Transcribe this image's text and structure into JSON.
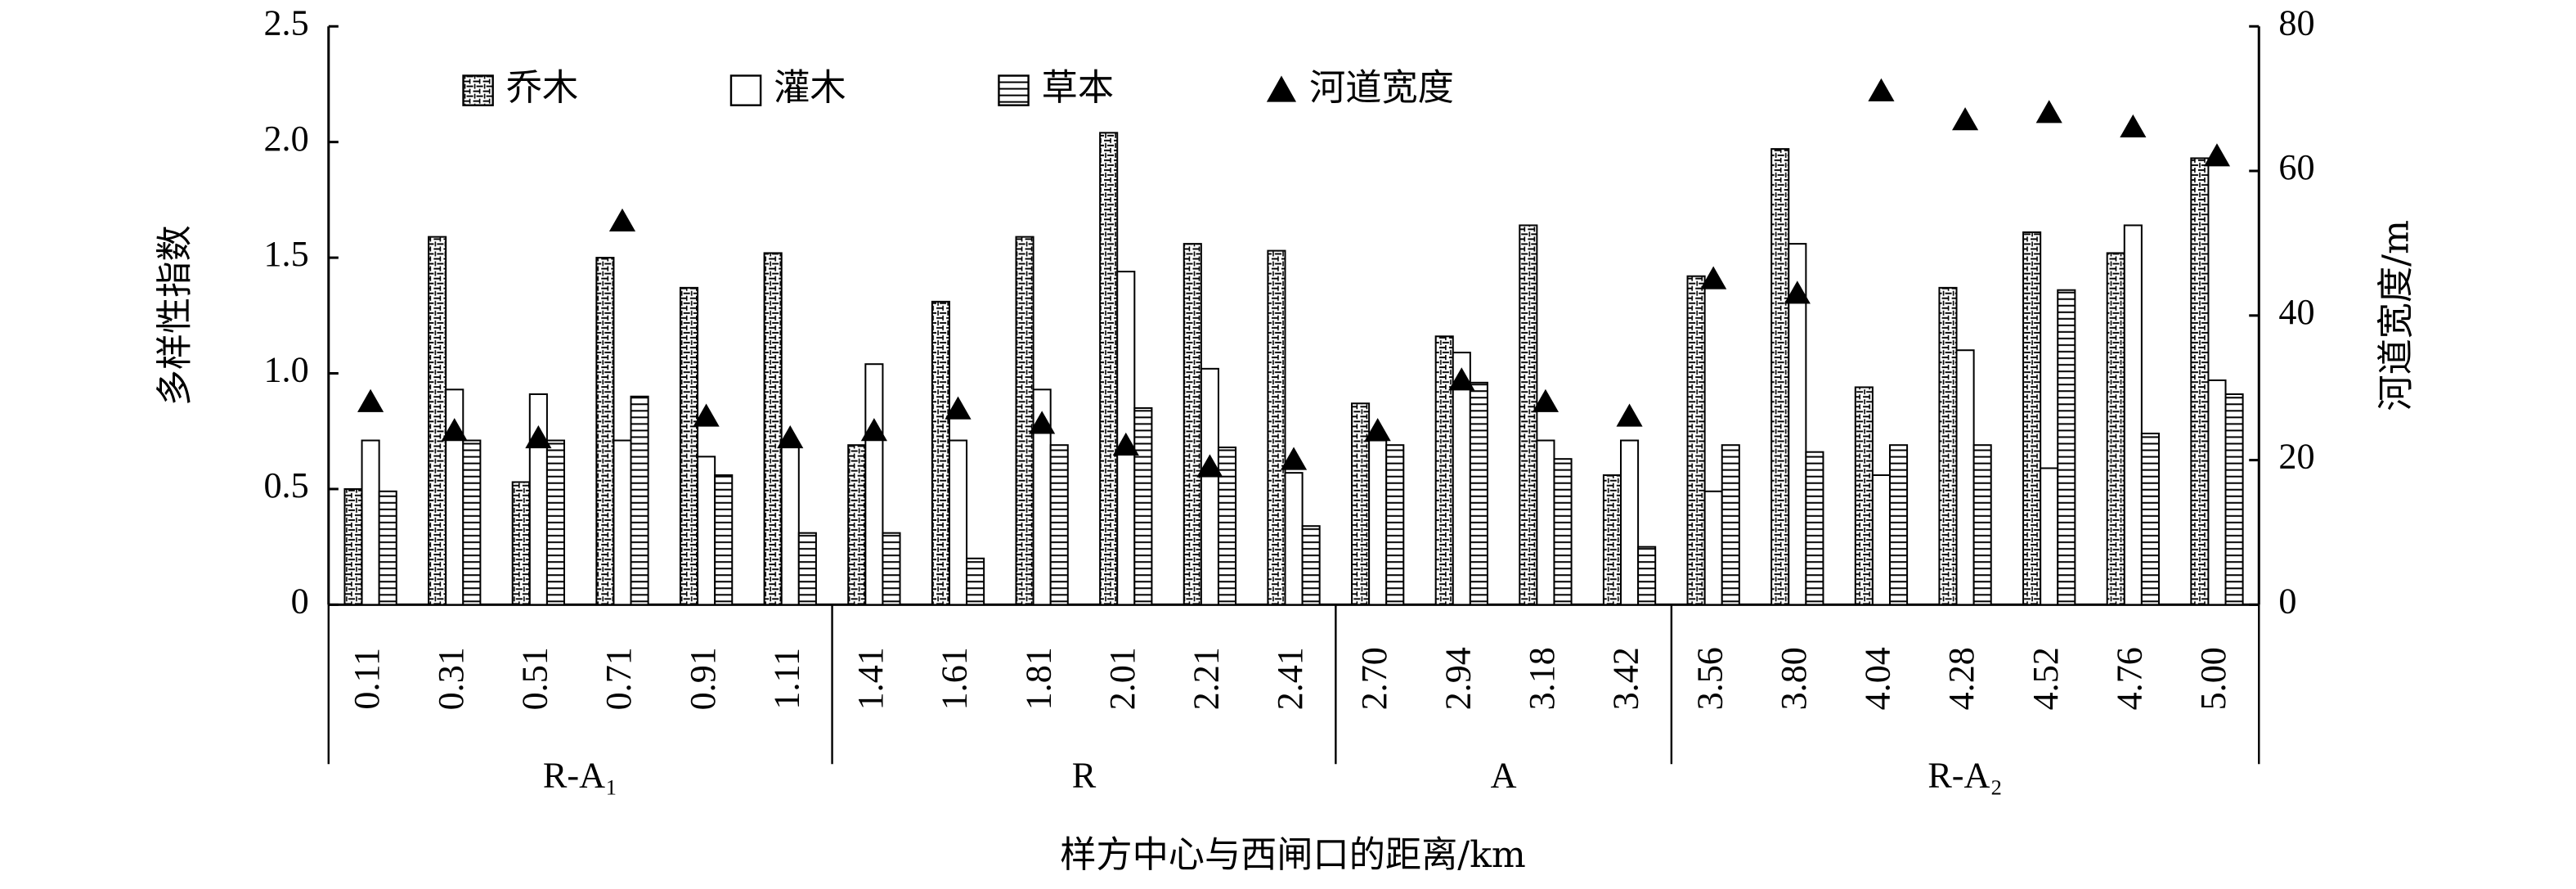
{
  "chart_data": {
    "type": "bar",
    "ylabel": "多样性指数",
    "y2label": "河道宽度/m",
    "xlabel": "样方中心与西闸口的距离/km",
    "categories": [
      "0.11",
      "0.31",
      "0.51",
      "0.71",
      "0.91",
      "1.11",
      "1.41",
      "1.61",
      "1.81",
      "2.01",
      "2.21",
      "2.41",
      "2.70",
      "2.94",
      "3.18",
      "3.42",
      "3.56",
      "3.80",
      "4.04",
      "4.28",
      "4.52",
      "4.76",
      "5.00"
    ],
    "groups": [
      {
        "name": "R-A₁",
        "size": 6
      },
      {
        "name": "R",
        "size": 6
      },
      {
        "name": "A",
        "size": 4
      },
      {
        "name": "R-A₂",
        "size": 7
      }
    ],
    "series": [
      {
        "name": "乔木",
        "color": "#000000",
        "values": [
          0.5,
          1.59,
          0.53,
          1.5,
          1.37,
          1.52,
          0.69,
          1.31,
          1.59,
          2.04,
          1.56,
          1.53,
          0.87,
          1.16,
          1.64,
          0.56,
          1.42,
          1.97,
          0.94,
          1.37,
          1.61,
          1.52,
          1.93
        ]
      },
      {
        "name": "灌木",
        "color": "#000000",
        "values": [
          0.71,
          0.93,
          0.91,
          0.71,
          0.64,
          0.7,
          1.04,
          0.71,
          0.93,
          1.44,
          1.02,
          0.57,
          0.71,
          1.09,
          0.71,
          0.71,
          0.49,
          1.56,
          0.56,
          1.1,
          0.59,
          1.64,
          0.97
        ]
      },
      {
        "name": "草本",
        "color": "#000000",
        "values": [
          0.49,
          0.71,
          0.71,
          0.9,
          0.56,
          0.31,
          0.31,
          0.2,
          0.69,
          0.85,
          0.68,
          0.34,
          0.69,
          0.96,
          0.63,
          0.25,
          0.69,
          0.66,
          0.69,
          0.69,
          1.36,
          0.74,
          0.91
        ]
      },
      {
        "name": "河道宽度",
        "color": "#000000",
        "type": "scatter",
        "axis": "y2",
        "values": [
          28,
          24,
          23,
          53,
          26,
          23,
          24,
          27,
          25,
          22,
          19,
          20,
          24,
          31,
          28,
          26,
          45,
          43,
          71,
          67,
          68,
          66,
          62
        ]
      }
    ],
    "ylim": [
      0,
      2.5
    ],
    "yticks": [
      0,
      0.5,
      {
        "value": 1,
        "label": "1.0"
      },
      1.5,
      {
        "value": 2,
        "label": "2.0"
      },
      2.5
    ],
    "y2lim": [
      0,
      80
    ],
    "y2ticks": [
      0,
      20,
      40,
      60,
      80
    ]
  }
}
